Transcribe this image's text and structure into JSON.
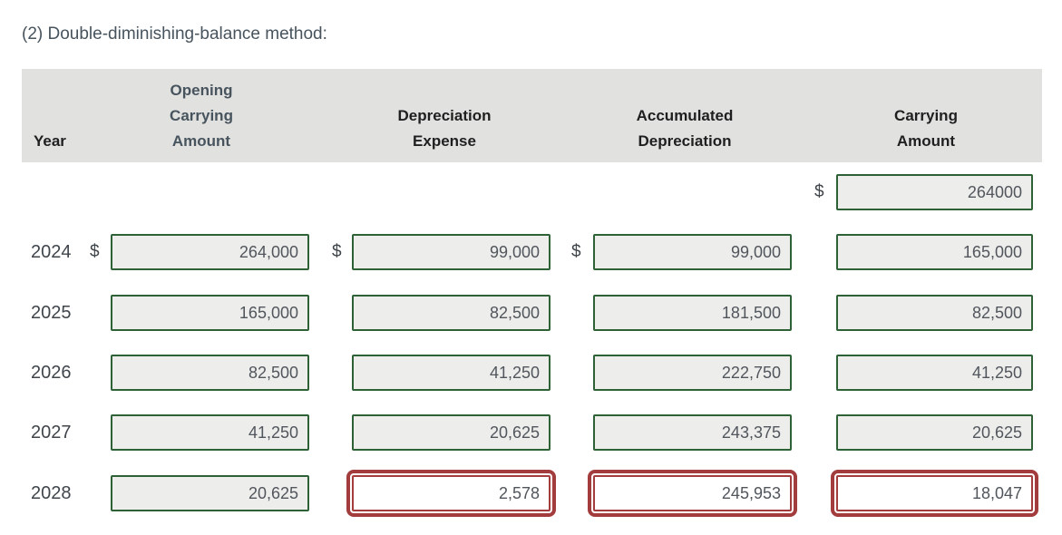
{
  "title": "(2) Double-diminishing-balance method:",
  "colors": {
    "header_bg": "#e1e1e0",
    "header_text": "#1f1f1f",
    "title_text": "#47545e",
    "row_text": "#3f454b",
    "value_text": "#51565c",
    "input_bg": "#ededec",
    "input_border_green": "#2f6136",
    "flag_red": "#a33c3c"
  },
  "table": {
    "headers": {
      "year": "Year",
      "opening_carrying_amount": "Opening\nCarrying\nAmount",
      "depreciation_expense": "Depreciation\nExpense",
      "accumulated_depreciation": "Accumulated\nDepreciation",
      "carrying_amount": "Carrying\nAmount"
    },
    "currency_symbol": "$",
    "initial_row": {
      "currency": "$",
      "carrying": "264000"
    },
    "rows": [
      {
        "year": "2024",
        "currency_opening": "$",
        "opening": "264,000",
        "currency_expense": "$",
        "expense": "99,000",
        "currency_accumulated": "$",
        "accumulated": "99,000",
        "carrying": "165,000"
      },
      {
        "year": "2025",
        "opening": "165,000",
        "expense": "82,500",
        "accumulated": "181,500",
        "carrying": "82,500"
      },
      {
        "year": "2026",
        "opening": "82,500",
        "expense": "41,250",
        "accumulated": "222,750",
        "carrying": "41,250"
      },
      {
        "year": "2027",
        "opening": "41,250",
        "expense": "20,625",
        "accumulated": "243,375",
        "carrying": "20,625"
      },
      {
        "year": "2028",
        "opening": "20,625",
        "expense": "2,578",
        "accumulated": "245,953",
        "carrying": "18,047"
      }
    ]
  }
}
